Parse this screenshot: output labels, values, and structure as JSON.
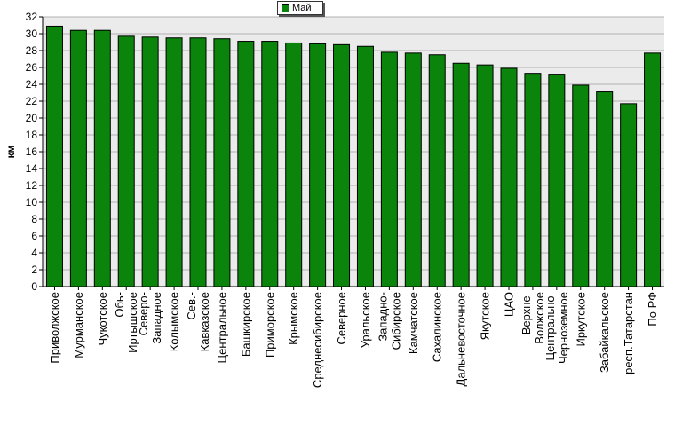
{
  "chart_data": {
    "type": "bar",
    "ylabel": "км",
    "ylim": [
      0,
      32
    ],
    "yticks": [
      0,
      2,
      4,
      6,
      8,
      10,
      12,
      14,
      16,
      18,
      20,
      22,
      24,
      26,
      28,
      30,
      32
    ],
    "grid": "horizontal",
    "legend_position": "top-center",
    "series": [
      {
        "name": "Май",
        "color": "#0a840a",
        "values": [
          30.9,
          30.4,
          30.4,
          29.7,
          29.6,
          29.5,
          29.5,
          29.4,
          29.1,
          29.1,
          28.9,
          28.8,
          28.7,
          28.5,
          27.8,
          27.7,
          27.5,
          26.5,
          26.3,
          25.9,
          25.3,
          25.2,
          23.9,
          23.1,
          21.7,
          27.7
        ]
      }
    ],
    "categories": [
      "Приволжское",
      "Мурманское",
      "Чукотское",
      "Обь-Иртышское",
      "Северо-Западное",
      "Колымское",
      "Сев.-Кавказское",
      "Центральное",
      "Башкирское",
      "Приморское",
      "Крымское",
      "Среднесибирское",
      "Северное",
      "Уральское",
      "Западно-Сибирское",
      "Камчатское",
      "Сахалинское",
      "Дальневосточное",
      "Якутское",
      "ЦАО",
      "Верхне-Волжское",
      "Центрально-Черноземное",
      "Иркутское",
      "Забайкальское",
      "респ.Татарстан",
      "По РФ"
    ]
  }
}
